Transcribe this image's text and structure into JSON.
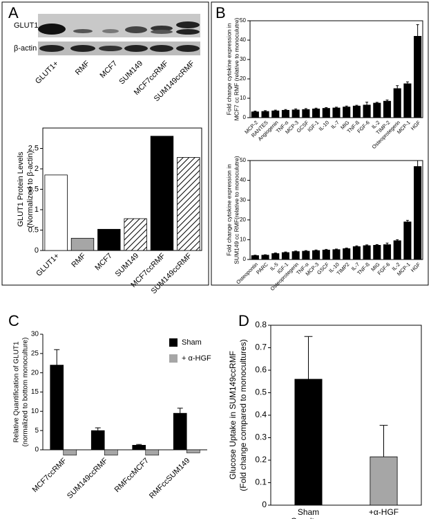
{
  "panel_labels": [
    "A",
    "B",
    "C",
    "D"
  ],
  "blot": {
    "rows": [
      "GLUT1",
      "β-actin"
    ],
    "lanes": [
      "GLUT1+",
      "RMF",
      "MCF7",
      "SUM149",
      "MCF7ccRMF",
      "SUM149ccRMF"
    ]
  },
  "chart_data": [
    {
      "type": "bar",
      "ylabel": [
        "GLUT1 Protein Levels",
        "(Normalized to β-actin)"
      ],
      "categories": [
        "GLUT1+",
        "RMF",
        "MCF7",
        "SUM149",
        "MCF7ccRMF",
        "SUM149ccRMF"
      ],
      "values": [
        1.85,
        0.3,
        0.52,
        0.78,
        2.8,
        2.28
      ],
      "colors": [
        "#ffffff",
        "#a6a6a6",
        "#000000",
        "#ffffff",
        "#000000",
        "#ffffff"
      ],
      "hatch": [
        false,
        false,
        false,
        true,
        false,
        true
      ],
      "ylim": [
        0,
        3
      ],
      "yticks": [
        0,
        0.5,
        1,
        1.5,
        2,
        2.5
      ]
    },
    {
      "type": "bar",
      "ylabel": [
        "Fold change cytokine expression in",
        "MCF7 cc RMF (relative to monoculutre)"
      ],
      "categories": [
        "MCP-2",
        "RANTES",
        "Angiogenin",
        "TNF-α",
        "MCP-3",
        "GCSF",
        "IGF-1",
        "IL-10",
        "IL-7",
        "MIG",
        "TNF-ß",
        "FGF-6",
        "IL-2",
        "TIMP-2",
        "Osteoprotegerin",
        "MCP-1",
        "HGF"
      ],
      "values": [
        3,
        3.2,
        3.5,
        3.8,
        4,
        4.2,
        4.5,
        4.8,
        5,
        5.5,
        6,
        6.5,
        7.5,
        8.5,
        15,
        17.5,
        42
      ],
      "errors": [
        0.4,
        0.4,
        0.4,
        0.4,
        0.5,
        0.5,
        0.4,
        0.4,
        0.4,
        0.5,
        0.4,
        1.5,
        0.4,
        0.6,
        1.5,
        1,
        6
      ],
      "color": "#000000",
      "ylim": [
        0,
        50
      ],
      "yticks": [
        0,
        10,
        20,
        30,
        40,
        50
      ]
    },
    {
      "type": "bar",
      "ylabel": [
        "Fold change cytokine expression in",
        "SUM149 cc RMF(relative to monoculutre)"
      ],
      "categories": [
        "Osteopontin",
        "PARC",
        "IL-5",
        "IGF-1",
        "Osteoprotegerin",
        "TNF-α",
        "MCP-3",
        "GSCF",
        "IL-10",
        "TIMP2",
        "IL-7",
        "TNF-ß",
        "MIG",
        "FGF-6",
        "IL-2",
        "MCP-1",
        "HGF"
      ],
      "values": [
        2,
        2.2,
        3,
        3.5,
        4,
        4.2,
        4.5,
        4.8,
        5,
        5.5,
        6.5,
        7,
        7.2,
        7.5,
        9.5,
        19,
        47
      ],
      "errors": [
        0.2,
        0.2,
        0.3,
        0.3,
        0.3,
        0.3,
        0.3,
        0.3,
        0.3,
        0.3,
        0.4,
        0.4,
        0.3,
        0.8,
        0.5,
        0.8,
        3
      ],
      "color": "#000000",
      "ylim": [
        0,
        50
      ],
      "yticks": [
        0,
        10,
        20,
        30,
        40,
        50
      ]
    },
    {
      "type": "grouped-bar",
      "ylabel": [
        "Relative Quantification of GLUT1",
        "(normalized to bottom monoculture)"
      ],
      "categories": [
        "MCF7ccRMF",
        "SUM149ccRMF",
        "RMFccMCF7",
        "RMFccSUM149"
      ],
      "series": [
        {
          "name": "Sham",
          "color": "#000000",
          "values": [
            22,
            5,
            1.2,
            9.5
          ],
          "errors": [
            4,
            0.7,
            0.2,
            1.3
          ]
        },
        {
          "name": "+ α-HGF",
          "color": "#a6a6a6",
          "values": [
            -1.4,
            -1.4,
            -1.4,
            -0.8
          ]
        }
      ],
      "ylim": [
        0,
        30
      ],
      "yticks": [
        0,
        5,
        10,
        15,
        20,
        25,
        30
      ]
    },
    {
      "type": "bar",
      "ylabel": [
        "Glucose Uptake in SUM149ccRMF",
        "(Fold change compared to monocultures)"
      ],
      "categories": [
        "Sham Coculture",
        "+α-HGF"
      ],
      "values": [
        0.56,
        0.215
      ],
      "errors": [
        0.19,
        0.14
      ],
      "colors": [
        "#000000",
        "#a6a6a6"
      ],
      "ylim": [
        0,
        0.8
      ],
      "yticks": [
        0,
        0.1,
        0.2,
        0.3,
        0.4,
        0.5,
        0.6,
        0.7,
        0.8
      ]
    }
  ]
}
